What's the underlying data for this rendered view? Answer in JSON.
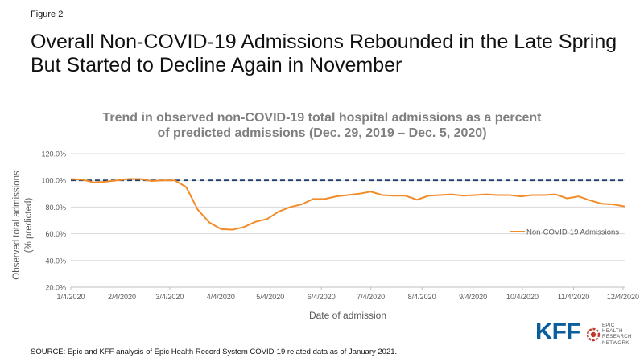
{
  "figure_label": "Figure 2",
  "headline": {
    "line1": "Overall Non-COVID-19 Admissions Rebounded in the Late Spring",
    "line2": "But Started to Decline Again in November"
  },
  "source_note": "SOURCE: Epic and KFF analysis of Epic Health Record System COVID-19 related data as of January 2021.",
  "logos": {
    "kff": "KFF",
    "epic_lines": [
      "EPIC",
      "HEALTH",
      "RESEARCH",
      "NETWORK"
    ]
  },
  "colors": {
    "series": "#f28c28",
    "reference_line": "#1f3f6e",
    "title": "#7f7f7f",
    "axis_text": "#595959",
    "kff_blue": "#0a5e9c",
    "epic_red": "#c0392b"
  },
  "chart_data": {
    "type": "line",
    "title_line1": "Trend in observed non-COVID-19 total hospital admissions as a percent",
    "title_line2": "of predicted admissions (Dec. 29, 2019 – Dec. 5, 2020)",
    "xlabel": "Date of admission",
    "ylabel_line1": "Observed total admissions",
    "ylabel_line2": "(% predicted)",
    "x_tick_labels": [
      "1/4/2020",
      "2/4/2020",
      "3/4/2020",
      "4/4/2020",
      "5/4/2020",
      "6/4/2020",
      "7/4/2020",
      "8/4/2020",
      "9/4/2020",
      "10/4/2020",
      "11/4/2020",
      "12/4/2020"
    ],
    "x_ticks": [
      "2020-01-04",
      "2020-02-04",
      "2020-03-04",
      "2020-04-04",
      "2020-05-04",
      "2020-06-04",
      "2020-07-04",
      "2020-08-04",
      "2020-09-04",
      "2020-10-04",
      "2020-11-04",
      "2020-12-04"
    ],
    "y_ticks": [
      20,
      40,
      60,
      80,
      100,
      120
    ],
    "y_tick_labels": [
      "20.0%",
      "40.0%",
      "60.0%",
      "80.0%",
      "100.0%",
      "120.0%"
    ],
    "xlim": [
      "2020-01-04",
      "2020-12-05"
    ],
    "ylim": [
      20,
      120
    ],
    "grid": "horizontal",
    "legend_position": "right",
    "reference_line": 100,
    "series": [
      {
        "name": "Non-COVID-19 Admissions",
        "x": [
          "2020-01-04",
          "2020-01-11",
          "2020-01-18",
          "2020-01-25",
          "2020-02-01",
          "2020-02-08",
          "2020-02-15",
          "2020-02-22",
          "2020-02-29",
          "2020-03-07",
          "2020-03-14",
          "2020-03-21",
          "2020-03-28",
          "2020-04-04",
          "2020-04-11",
          "2020-04-18",
          "2020-04-25",
          "2020-05-02",
          "2020-05-09",
          "2020-05-16",
          "2020-05-23",
          "2020-05-30",
          "2020-06-06",
          "2020-06-13",
          "2020-06-20",
          "2020-06-27",
          "2020-07-04",
          "2020-07-11",
          "2020-07-18",
          "2020-07-25",
          "2020-08-01",
          "2020-08-08",
          "2020-08-15",
          "2020-08-22",
          "2020-08-29",
          "2020-09-05",
          "2020-09-12",
          "2020-09-19",
          "2020-09-26",
          "2020-10-03",
          "2020-10-10",
          "2020-10-17",
          "2020-10-24",
          "2020-10-31",
          "2020-11-07",
          "2020-11-14",
          "2020-11-21",
          "2020-11-28",
          "2020-12-05"
        ],
        "values": [
          101,
          100.5,
          98.5,
          99,
          100,
          101,
          101,
          99.5,
          100,
          100,
          95,
          78,
          68.5,
          63.5,
          63,
          65,
          69,
          71,
          76.5,
          80,
          82,
          86,
          86,
          88,
          89,
          90,
          91.5,
          89,
          88.5,
          88.5,
          85.5,
          88.5,
          89,
          89.5,
          88.5,
          89,
          89.5,
          89,
          89,
          88,
          89,
          89,
          89.5,
          86.5,
          88,
          85,
          82.5,
          82,
          80.5
        ]
      }
    ]
  }
}
